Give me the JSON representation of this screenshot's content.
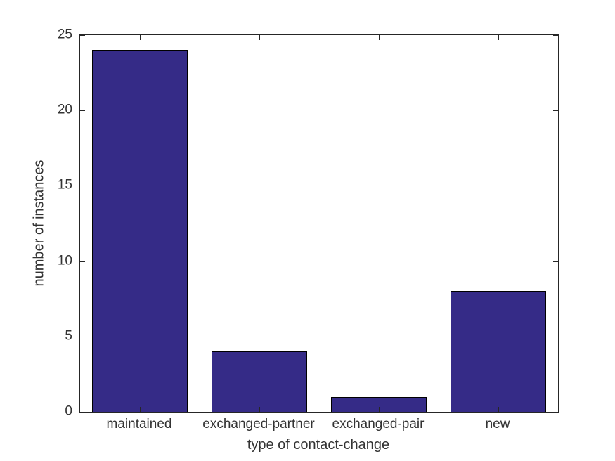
{
  "figure": {
    "background": "#ffffff"
  },
  "chart_data": {
    "type": "bar",
    "categories": [
      "maintained",
      "exchanged-partner",
      "exchanged-pair",
      "new"
    ],
    "values": [
      24,
      4,
      1,
      8
    ],
    "title": "",
    "xlabel": "type of contact-change",
    "ylabel": "number of instances",
    "ylim": [
      0,
      25
    ],
    "yticks": [
      0,
      5,
      10,
      15,
      20,
      25
    ],
    "grid": false,
    "legend": "none",
    "bar_width_fraction": 0.8,
    "bar_color": "#352B87",
    "bar_edge_color": "#000000",
    "axis_color": "#262626",
    "text_color": "#333333"
  }
}
